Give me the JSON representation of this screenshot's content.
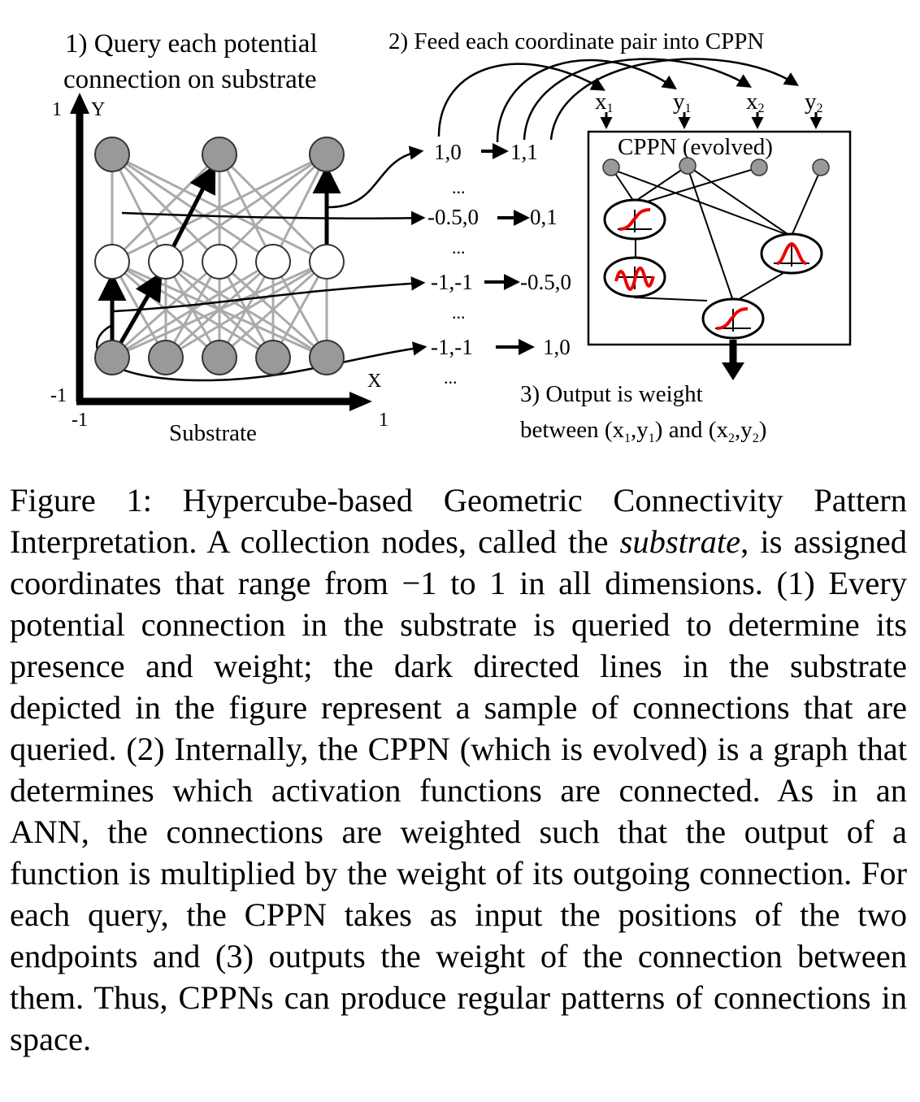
{
  "figure": {
    "step1_line1": "1) Query each potential",
    "step1_line2": "connection on substrate",
    "step2": "2) Feed each coordinate pair into CPPN",
    "step3_line1": "3) Output is weight",
    "step3_line2_a": "between (x",
    "step3_line2_b": ",y",
    "step3_line2_c": ") and (x",
    "step3_line2_d": ",y",
    "step3_line2_e": ")",
    "sub_1": "1",
    "sub_2": "2",
    "axis_y": "Y",
    "axis_x": "X",
    "tick_y_top": "1",
    "tick_y_bottom": "-1",
    "tick_x_left": "-1",
    "tick_x_right": "1",
    "substrate_label": "Substrate",
    "cppn_label": "CPPN (evolved)",
    "input_x": "x",
    "input_y": "y",
    "dots": "...",
    "queries": [
      {
        "from": "1,0",
        "to": "1,1"
      },
      {
        "from": "-0.5,0",
        "to": "0,1"
      },
      {
        "from": "-1,-1",
        "to": "-0.5,0"
      },
      {
        "from": "-1,-1",
        "to": "1,0"
      }
    ]
  },
  "caption": {
    "lead": "Figure 1: Hypercube-based Geometric Connectivity Pattern Interpretation.  A collection nodes, called the ",
    "emphasis": "substrate",
    "rest_1": ", is assigned coordinates that range from −1 to 1 in all di­mensions. (1) Every potential connection in the substrate is queried to determine its presence and weight; the dark di­rected lines in the substrate depicted in the figure represent a sample of connections that are queried. (2) Internally, the CPPN (which is evolved) is a graph that determines which activation functions are connected. As in an ANN, the con­nections are weighted such that the output of a function is multiplied by the weight of its outgoing connection. For each query, the CPPN takes as input the positions of the two endpoints and (3) outputs the weight of the connection be­tween them. Thus, CPPNs can produce regular patterns of connections in space."
  }
}
